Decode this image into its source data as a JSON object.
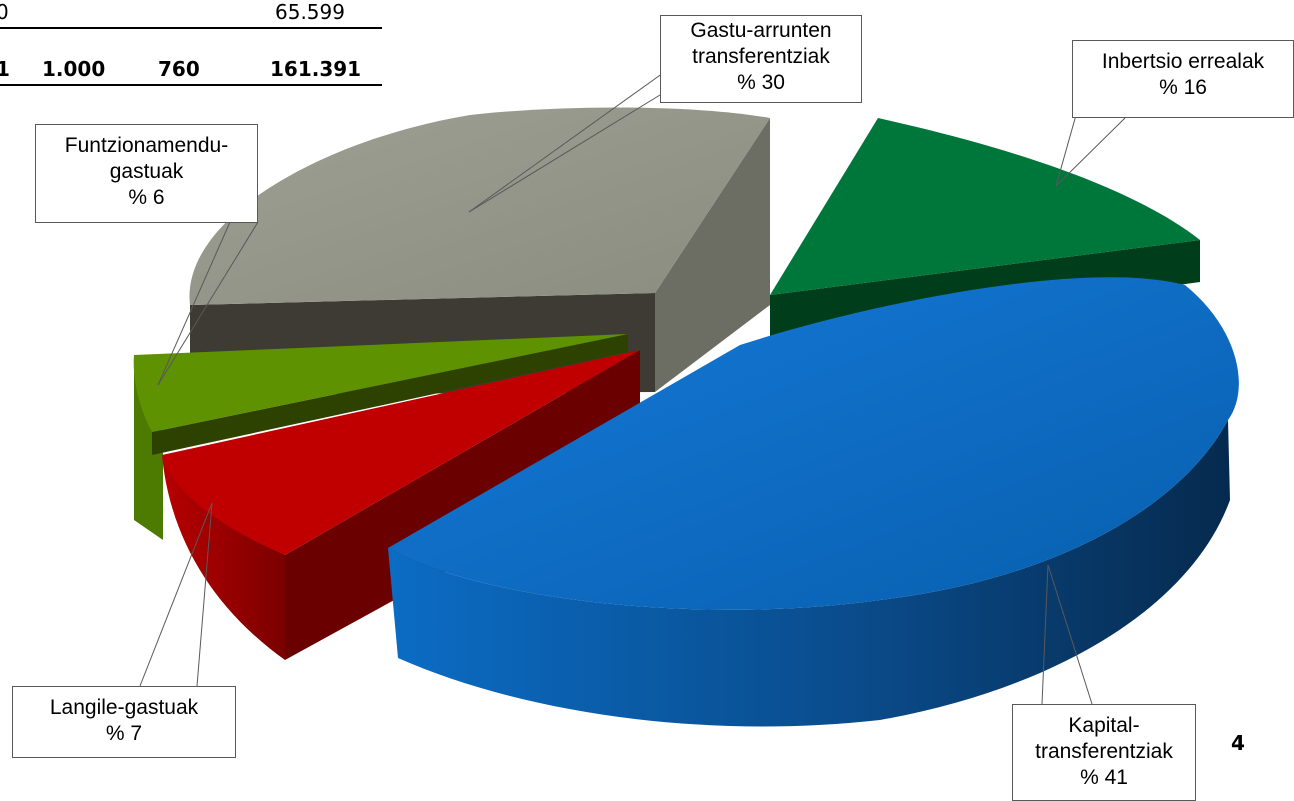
{
  "table_fragment": {
    "row1": {
      "col_a": "0",
      "col_d": "65.599"
    },
    "total_row": {
      "col_a": "1",
      "col_b": "1.000",
      "col_c": "760",
      "col_d": "161.391"
    }
  },
  "chart_data": {
    "type": "pie",
    "style": "3d-exploded",
    "legend": "none",
    "slices": [
      {
        "name": "Kapital-transferentziak",
        "label": [
          "Kapital-",
          "transferentziak",
          "% 41"
        ],
        "value": 41,
        "color": "#0a6cc4"
      },
      {
        "name": "Langile-gastuak",
        "label": [
          "Langile-gastuak",
          "% 7"
        ],
        "value": 7,
        "color": "#c00000"
      },
      {
        "name": "Funtzionamendu-gastuak",
        "label": [
          "Funtzionamendu-",
          "gastuak",
          "% 6"
        ],
        "value": 6,
        "color": "#5f9200"
      },
      {
        "name": "Gastu-arrunten transferentziak",
        "label": [
          "Gastu-arrunten",
          "transferentziak",
          "% 30"
        ],
        "value": 30,
        "color": "#94968a"
      },
      {
        "name": "Inbertsio errealak",
        "label": [
          "Inbertsio errealak",
          "% 16"
        ],
        "value": 16,
        "color": "#00773a"
      }
    ]
  },
  "page_number": "4"
}
